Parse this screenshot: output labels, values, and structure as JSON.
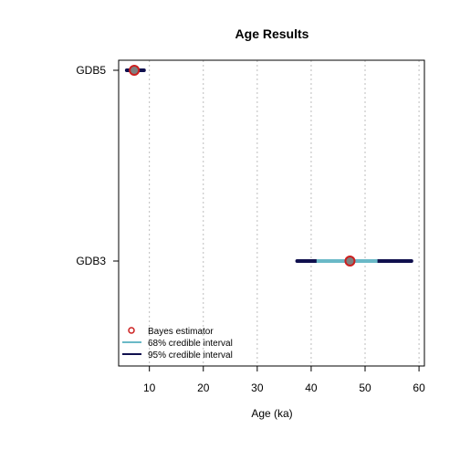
{
  "chart_data": {
    "type": "interval",
    "title": "Age Results",
    "xlabel": "Age (ka)",
    "ylabel": "",
    "xlim": [
      4.3,
      61
    ],
    "xticks": [
      10,
      20,
      30,
      40,
      50,
      60
    ],
    "xtick_labels": [
      "10",
      "20",
      "30",
      "40",
      "50",
      "60"
    ],
    "grid": "vertical dotted at x ticks",
    "samples": [
      {
        "label": "GDB5",
        "estimate": 7.2,
        "ci68": [
          6.6,
          7.9
        ],
        "ci95": [
          5.8,
          9.0
        ]
      },
      {
        "label": "GDB3",
        "estimate": 47.2,
        "ci68": [
          41.0,
          52.3
        ],
        "ci95": [
          37.4,
          58.6
        ]
      }
    ],
    "legend": {
      "position": "bottom-left",
      "items": [
        {
          "label": "Bayes estimator",
          "symbol": "circle"
        },
        {
          "label": "68% credible interval",
          "symbol": "line-light"
        },
        {
          "label": "95% credible interval",
          "symbol": "line-dark"
        }
      ]
    },
    "colors": {
      "ci95": "#10104e",
      "ci68": "#6ab9c7",
      "point_fill": "#7f7f7f",
      "point_stroke": "#cc1f1f",
      "grid": "#bdbdbd"
    }
  }
}
